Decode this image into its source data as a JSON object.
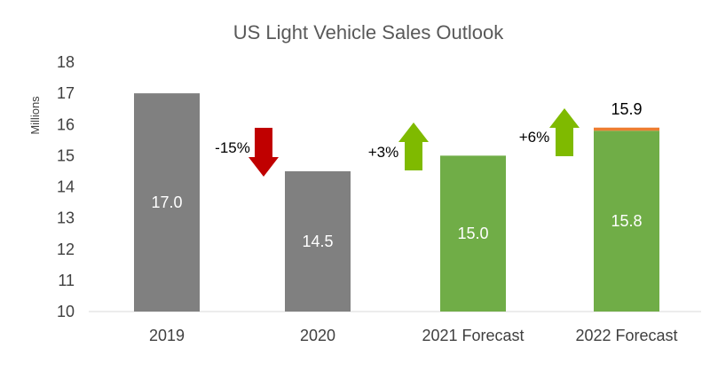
{
  "chart_data": {
    "type": "bar",
    "title": "US Light Vehicle Sales Outlook",
    "xlabel": "",
    "ylabel": "Millions",
    "ylim": [
      10,
      18
    ],
    "yticks": [
      10,
      11,
      12,
      13,
      14,
      15,
      16,
      17,
      18
    ],
    "grid": false,
    "categories": [
      "2019",
      "2020",
      "2021 Forecast",
      "2022 Forecast"
    ],
    "series": [
      {
        "values": [
          17.0,
          14.5,
          15.0,
          15.8
        ],
        "colors": [
          "#808080",
          "#808080",
          "#70ad47",
          "#70ad47"
        ]
      },
      {
        "values": [
          0,
          0,
          0,
          0.1
        ],
        "color": "#ed7d31"
      }
    ],
    "bar_labels": [
      "17.0",
      "14.5",
      "15.0",
      "15.8"
    ],
    "total_label": "15.9",
    "changes": [
      {
        "between": [
          0,
          1
        ],
        "label": "-15%",
        "direction": "down",
        "color": "#c00000"
      },
      {
        "between": [
          1,
          2
        ],
        "label": "+3%",
        "direction": "up",
        "color": "#7fba00"
      },
      {
        "between": [
          2,
          3
        ],
        "label": "+6%",
        "direction": "up",
        "color": "#7fba00"
      }
    ]
  }
}
